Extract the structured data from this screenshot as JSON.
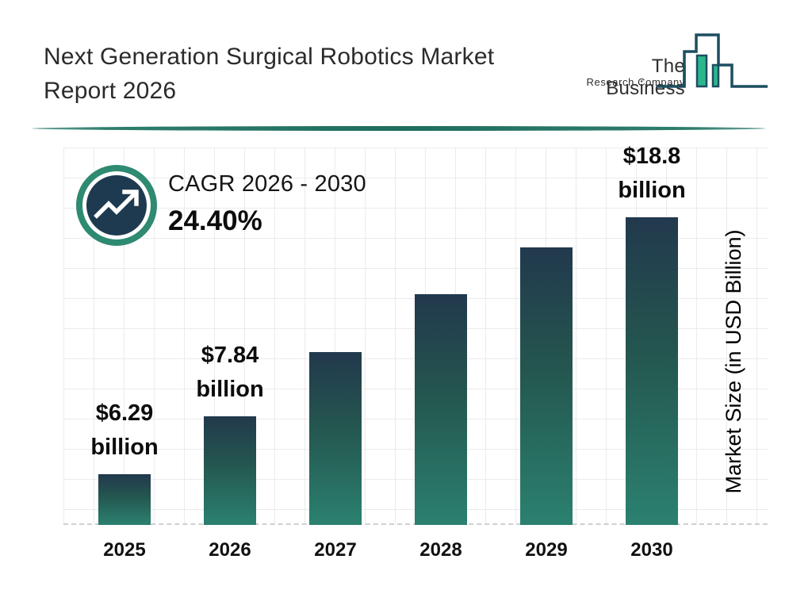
{
  "header": {
    "title_line1": "Next Generation Surgical Robotics Market",
    "title_line2": "Report 2026",
    "logo": {
      "name_line1": "The Business",
      "name_line2": "Research Company"
    }
  },
  "cagr": {
    "label": "CAGR 2026 - 2030",
    "value": "24.40%"
  },
  "chart_data": {
    "type": "bar",
    "title": "Next Generation Surgical Robotics Market Report 2026",
    "categories": [
      "2025",
      "2026",
      "2027",
      "2028",
      "2029",
      "2030"
    ],
    "values": [
      6.29,
      7.84,
      9.75,
      12.13,
      15.09,
      18.8
    ],
    "estimated_indices": [
      2,
      3,
      4
    ],
    "value_labels": [
      {
        "index": 0,
        "line1": "$6.29",
        "line2": "billion"
      },
      {
        "index": 1,
        "line1": "$7.84",
        "line2": "billion"
      },
      {
        "index": 5,
        "line1": "$18.8",
        "line2": "billion"
      }
    ],
    "ylabel": "Market Size (in USD Billion)",
    "xlabel": "",
    "grid": true,
    "legend": false,
    "baseline_style": "dashed",
    "bar_colors": {
      "top": "#22394d",
      "bottom": "#2b8170"
    },
    "accent_green": "#2e8a71",
    "logo_green": "#2cb68c",
    "logo_outline": "#1d4e61",
    "bar_heights_pct": [
      13.4,
      28.8,
      46.0,
      61.3,
      73.9,
      81.9
    ]
  }
}
